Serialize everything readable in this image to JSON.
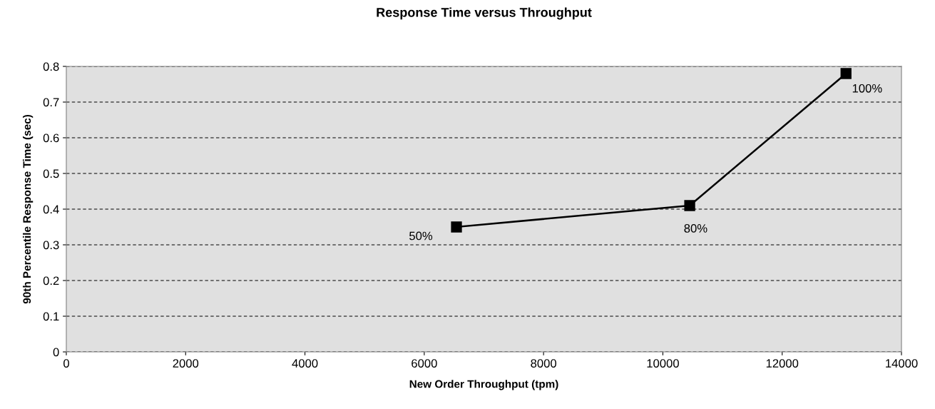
{
  "chart_data": {
    "type": "line",
    "title": "Response Time versus Throughput",
    "xlabel": "New Order Throughput (tpm)",
    "ylabel": "90th Percentile Response Time (sec)",
    "x": [
      6540,
      10450,
      13070
    ],
    "series": [
      {
        "color": "#000000",
        "values": [
          0.35,
          0.41,
          0.78
        ]
      }
    ],
    "xlim": [
      0,
      14000
    ],
    "xticks": [
      0,
      2000,
      4000,
      6000,
      8000,
      10000,
      12000,
      14000
    ],
    "ylim": [
      0,
      0.8
    ],
    "yticks": [
      0,
      0.1,
      0.2,
      0.3,
      0.4,
      0.5,
      0.6,
      0.7,
      0.8
    ],
    "grid": "y",
    "marker": "square",
    "line_style": "solid",
    "annotations": [
      {
        "text": "50%",
        "x": 6540,
        "y": 0.35
      },
      {
        "text": "80%",
        "x": 10450,
        "y": 0.41
      },
      {
        "text": "100%",
        "x": 13070,
        "y": 0.78
      }
    ]
  }
}
